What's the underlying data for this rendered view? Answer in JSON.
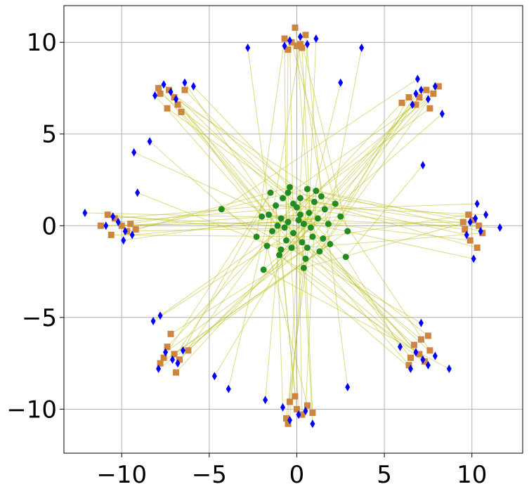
{
  "chart_data": {
    "type": "scatter",
    "title": "",
    "xlabel": "",
    "ylabel": "",
    "xlim": [
      -13.3,
      12.9
    ],
    "ylim": [
      -12.4,
      12.0
    ],
    "grid": true,
    "legend": "none",
    "x_ticks": [
      -10,
      -5,
      0,
      5,
      10
    ],
    "x_tick_labels": [
      "−10",
      "−5",
      "0",
      "5",
      "10"
    ],
    "y_ticks": [
      -10,
      -5,
      0,
      5,
      10
    ],
    "y_tick_labels": [
      "−10",
      "−5",
      "0",
      "5",
      "10"
    ],
    "colors": {
      "source": "#228b22",
      "target": "#0000ff",
      "generated": "#cd853f",
      "link": "#bcbd22",
      "grid": "#b0b0b0"
    },
    "markers": {
      "source": "circle",
      "target": "diamond",
      "generated": "square"
    },
    "cluster_centers": [
      [
        10,
        0
      ],
      [
        7.07,
        7.07
      ],
      [
        0,
        10
      ],
      [
        -7.07,
        7.07
      ],
      [
        -10,
        0
      ],
      [
        -7.07,
        -7.07
      ],
      [
        0,
        -10
      ],
      [
        7.07,
        -7.07
      ]
    ],
    "series": [
      {
        "marker": "circle",
        "points": [
          [
            -0.5,
            1.8
          ],
          [
            0.6,
            2.0
          ],
          [
            1.1,
            1.9
          ],
          [
            -1.2,
            1.1
          ],
          [
            0.2,
            1.5
          ],
          [
            -0.9,
            0.4
          ],
          [
            1.6,
            0.9
          ],
          [
            -1.6,
            0.6
          ],
          [
            0.9,
            -0.6
          ],
          [
            -0.3,
            -1.2
          ],
          [
            0.4,
            -2.3
          ],
          [
            -1.0,
            -1.6
          ],
          [
            1.3,
            -1.4
          ],
          [
            -1.9,
            -2.4
          ],
          [
            2.8,
            -1.7
          ],
          [
            -4.3,
            0.9
          ],
          [
            2.9,
            -0.3
          ],
          [
            0.1,
            0.3
          ],
          [
            -0.2,
            -0.4
          ],
          [
            0.7,
            0.7
          ],
          [
            -0.6,
            -0.8
          ],
          [
            1.8,
            0.1
          ],
          [
            -1.4,
            -0.3
          ],
          [
            0.3,
            -0.9
          ],
          [
            1.0,
            1.3
          ],
          [
            -0.8,
            1.5
          ],
          [
            2.2,
            1.2
          ],
          [
            -2.0,
            0.5
          ],
          [
            0.5,
            -1.8
          ],
          [
            -0.4,
            2.1
          ],
          [
            1.5,
            -0.7
          ],
          [
            -1.7,
            -1.1
          ],
          [
            0.0,
            1.0
          ],
          [
            0.8,
            -0.1
          ],
          [
            -1.1,
            0.0
          ],
          [
            0.2,
            0.6
          ],
          [
            -0.5,
            0.2
          ],
          [
            1.2,
            0.4
          ],
          [
            -0.9,
            -1.3
          ],
          [
            2.5,
            0.5
          ],
          [
            -2.3,
            -0.6
          ],
          [
            0.6,
            -1.2
          ],
          [
            -0.2,
            1.2
          ],
          [
            1.9,
            -1.0
          ],
          [
            -1.5,
            1.8
          ],
          [
            0.4,
            0.1
          ],
          [
            -0.7,
            -0.1
          ],
          [
            1.4,
            1.6
          ]
        ]
      },
      {
        "marker": "diamond",
        "points": [
          [
            10.2,
            0.4
          ],
          [
            10.5,
            -0.3
          ],
          [
            9.9,
            0.2
          ],
          [
            10.8,
            0.6
          ],
          [
            9.7,
            -0.5
          ],
          [
            11.6,
            -0.1
          ],
          [
            10.3,
            1.2
          ],
          [
            10.1,
            -1.8
          ],
          [
            7.1,
            7.4
          ],
          [
            7.5,
            6.9
          ],
          [
            6.8,
            7.2
          ],
          [
            7.9,
            7.6
          ],
          [
            6.6,
            6.6
          ],
          [
            8.3,
            6.1
          ],
          [
            7.2,
            3.3
          ],
          [
            6.9,
            8.0
          ],
          [
            0.2,
            10.3
          ],
          [
            0.6,
            9.9
          ],
          [
            -0.4,
            10.1
          ],
          [
            1.1,
            10.2
          ],
          [
            -0.7,
            9.8
          ],
          [
            3.7,
            9.7
          ],
          [
            -2.8,
            9.7
          ],
          [
            2.5,
            7.8
          ],
          [
            -7.2,
            7.3
          ],
          [
            -7.6,
            7.7
          ],
          [
            -6.9,
            6.9
          ],
          [
            -8.1,
            7.1
          ],
          [
            -6.4,
            7.8
          ],
          [
            -5.9,
            7.6
          ],
          [
            -9.3,
            4.0
          ],
          [
            -8.4,
            4.6
          ],
          [
            -10.2,
            0.2
          ],
          [
            -9.8,
            -0.3
          ],
          [
            -10.5,
            0.5
          ],
          [
            -9.9,
            -0.8
          ],
          [
            -10.9,
            0.0
          ],
          [
            -12.1,
            0.7
          ],
          [
            -9.1,
            1.8
          ],
          [
            -9.4,
            -0.5
          ],
          [
            -7.1,
            -7.3
          ],
          [
            -7.5,
            -6.9
          ],
          [
            -6.8,
            -7.5
          ],
          [
            -7.9,
            -7.8
          ],
          [
            -6.5,
            -6.8
          ],
          [
            -8.2,
            -5.2
          ],
          [
            -7.8,
            -4.9
          ],
          [
            -4.7,
            -8.2
          ],
          [
            0.1,
            -10.3
          ],
          [
            -0.4,
            -10.6
          ],
          [
            0.5,
            -10.1
          ],
          [
            -0.8,
            -9.9
          ],
          [
            0.9,
            -10.8
          ],
          [
            -1.8,
            -9.5
          ],
          [
            2.9,
            -8.8
          ],
          [
            -3.9,
            -8.9
          ],
          [
            7.2,
            -7.3
          ],
          [
            6.8,
            -6.9
          ],
          [
            7.5,
            -7.6
          ],
          [
            6.5,
            -7.8
          ],
          [
            7.9,
            -7.1
          ],
          [
            8.7,
            -7.8
          ],
          [
            5.9,
            -6.6
          ],
          [
            7.1,
            -5.3
          ]
        ]
      },
      {
        "marker": "square",
        "points": [
          [
            9.6,
            -0.2
          ],
          [
            10.1,
            0.3
          ],
          [
            9.9,
            -0.8
          ],
          [
            10.4,
            0.0
          ],
          [
            9.8,
            0.6
          ],
          [
            10.6,
            -0.4
          ],
          [
            9.5,
            0.2
          ],
          [
            10.3,
            -1.2
          ],
          [
            7.0,
            7.0
          ],
          [
            7.4,
            7.4
          ],
          [
            6.8,
            6.6
          ],
          [
            7.8,
            7.2
          ],
          [
            6.4,
            7.0
          ],
          [
            6.0,
            6.7
          ],
          [
            7.6,
            6.4
          ],
          [
            8.1,
            7.6
          ],
          [
            0.0,
            9.8
          ],
          [
            -0.3,
            10.0
          ],
          [
            0.3,
            9.7
          ],
          [
            -0.7,
            10.2
          ],
          [
            0.5,
            10.4
          ],
          [
            -0.1,
            10.8
          ],
          [
            0.2,
            9.9
          ],
          [
            -0.5,
            9.6
          ],
          [
            -7.0,
            7.0
          ],
          [
            -7.3,
            7.4
          ],
          [
            -6.8,
            6.6
          ],
          [
            -7.8,
            7.2
          ],
          [
            -6.6,
            6.2
          ],
          [
            -6.4,
            7.4
          ],
          [
            -7.4,
            6.4
          ],
          [
            -7.9,
            7.5
          ],
          [
            -10.0,
            0.0
          ],
          [
            -10.4,
            0.4
          ],
          [
            -9.7,
            -0.3
          ],
          [
            -10.6,
            -0.5
          ],
          [
            -9.5,
            0.1
          ],
          [
            -10.8,
            0.6
          ],
          [
            -9.2,
            -0.2
          ],
          [
            -11.2,
            0.0
          ],
          [
            -7.0,
            -7.0
          ],
          [
            -7.4,
            -6.6
          ],
          [
            -6.7,
            -7.3
          ],
          [
            -7.8,
            -7.5
          ],
          [
            -6.2,
            -6.8
          ],
          [
            -7.2,
            -5.9
          ],
          [
            -6.9,
            -8.0
          ],
          [
            -7.6,
            -7.2
          ],
          [
            0.0,
            -10.0
          ],
          [
            -0.4,
            -9.6
          ],
          [
            0.3,
            -10.3
          ],
          [
            -0.6,
            -10.5
          ],
          [
            0.6,
            -9.8
          ],
          [
            -0.1,
            -9.3
          ],
          [
            0.9,
            -10.2
          ],
          [
            -0.5,
            -10.8
          ],
          [
            7.0,
            -7.0
          ],
          [
            6.7,
            -6.5
          ],
          [
            7.3,
            -7.4
          ],
          [
            6.5,
            -7.2
          ],
          [
            7.6,
            -6.8
          ],
          [
            7.1,
            -6.2
          ],
          [
            6.4,
            -7.6
          ],
          [
            7.5,
            -6.0
          ]
        ]
      }
    ]
  }
}
